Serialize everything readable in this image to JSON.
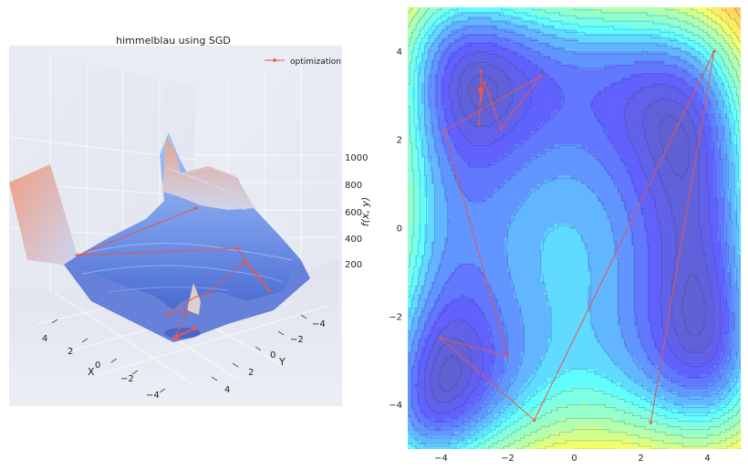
{
  "chart_data": [
    {
      "type": "surface3d",
      "title": "himmelblau using SGD",
      "xlabel": "X",
      "ylabel": "Y",
      "zlabel": "f(x, y)",
      "x_ticks": [
        "4",
        "2",
        "0",
        "−2",
        "−4"
      ],
      "y_ticks": [
        "−4",
        "−2",
        "0",
        "2",
        "4"
      ],
      "z_ticks": [
        "1000",
        "800",
        "600",
        "400",
        "200"
      ],
      "legend": {
        "label": "optimization",
        "position": "top-right",
        "color": "#e8574b"
      },
      "colormap": "coolwarm",
      "grid": true
    },
    {
      "type": "contour",
      "function": "himmelblau",
      "colormap": "jet",
      "xlim": [
        -5,
        5
      ],
      "ylim": [
        -5,
        5
      ],
      "x_ticks": [
        -4,
        -2,
        0,
        2,
        4
      ],
      "y_ticks": [
        -4,
        -2,
        0,
        2,
        4
      ],
      "tick_labels_x": [
        "−4",
        "−2",
        "0",
        "2",
        "4"
      ],
      "tick_labels_y": [
        "−4",
        "−2",
        "0",
        "2",
        "4"
      ],
      "path_color": "#e8574b",
      "path": [
        {
          "x": 2.3,
          "y": -4.4
        },
        {
          "x": 4.2,
          "y": 4.0
        },
        {
          "x": -1.2,
          "y": -4.35
        },
        {
          "x": -4.0,
          "y": -2.5
        },
        {
          "x": -2.0,
          "y": -2.9
        },
        {
          "x": -3.9,
          "y": 2.2
        },
        {
          "x": -1.0,
          "y": 3.45
        },
        {
          "x": -2.2,
          "y": 2.25
        },
        {
          "x": -2.7,
          "y": 3.3
        },
        {
          "x": -2.8,
          "y": 2.9
        },
        {
          "x": -2.8,
          "y": 3.55
        },
        {
          "x": -2.85,
          "y": 2.35
        },
        {
          "x": -2.81,
          "y": 3.13
        },
        {
          "x": -2.805,
          "y": 3.131
        }
      ]
    }
  ]
}
